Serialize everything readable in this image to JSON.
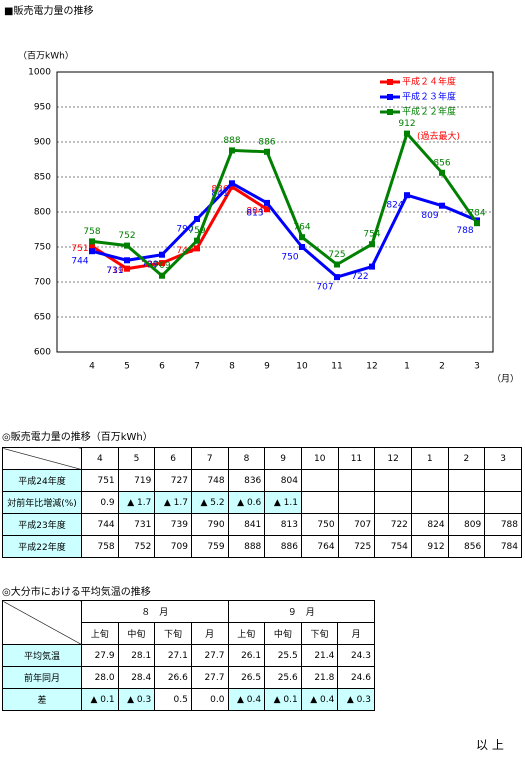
{
  "header": {
    "title": "■販売電力量の推移"
  },
  "chart_data": {
    "type": "line",
    "ylabel": "（百万kWh）",
    "xlabel": "（月）",
    "categories": [
      "4",
      "5",
      "6",
      "7",
      "8",
      "9",
      "10",
      "11",
      "12",
      "1",
      "2",
      "3"
    ],
    "series": [
      {
        "name": "平成２４年度",
        "color": "#ff0000",
        "values": [
          751,
          719,
          727,
          748,
          836,
          804,
          null,
          null,
          null,
          null,
          null,
          null
        ]
      },
      {
        "name": "平成２３年度",
        "color": "#0000ff",
        "values": [
          744,
          731,
          739,
          790,
          841,
          813,
          750,
          707,
          722,
          824,
          809,
          788
        ]
      },
      {
        "name": "平成２２年度",
        "color": "#008000",
        "values": [
          758,
          752,
          709,
          759,
          888,
          886,
          764,
          725,
          754,
          912,
          856,
          784
        ]
      }
    ],
    "ylim": [
      600,
      1000
    ],
    "yticks": [
      600,
      650,
      700,
      750,
      800,
      850,
      900,
      950,
      1000
    ],
    "grid": true,
    "legend": "upper right",
    "annotation": "(過去最大)"
  },
  "sales_table": {
    "title": "◎販売電力量の推移（百万kWh）",
    "row_labels": [
      "平成24年度",
      "対前年比増減(%)",
      "平成23年度",
      "平成22年度"
    ],
    "yoy": [
      "0.9",
      "▲ 1.7",
      "▲ 1.7",
      "▲ 5.2",
      "▲ 0.6",
      "▲ 1.1",
      null,
      null,
      null,
      null,
      null,
      null
    ]
  },
  "temp_table": {
    "title": "◎大分市における平均気温の推移",
    "months": [
      "８　月",
      "９　月"
    ],
    "periods": [
      "上旬",
      "中旬",
      "下旬",
      "月"
    ],
    "rows": [
      {
        "label": "平均気温",
        "values": [
          "27.9",
          "28.1",
          "27.1",
          "27.7",
          "26.1",
          "25.5",
          "21.4",
          "24.3"
        ]
      },
      {
        "label": "前年同月",
        "values": [
          "28.0",
          "28.4",
          "26.6",
          "27.7",
          "26.5",
          "25.6",
          "21.8",
          "24.6"
        ]
      },
      {
        "label": "差",
        "values": [
          "▲ 0.1",
          "▲ 0.3",
          "0.5",
          "0.0",
          "▲ 0.4",
          "▲ 0.1",
          "▲ 0.4",
          "▲ 0.3"
        ]
      }
    ]
  },
  "footer": "以 上"
}
